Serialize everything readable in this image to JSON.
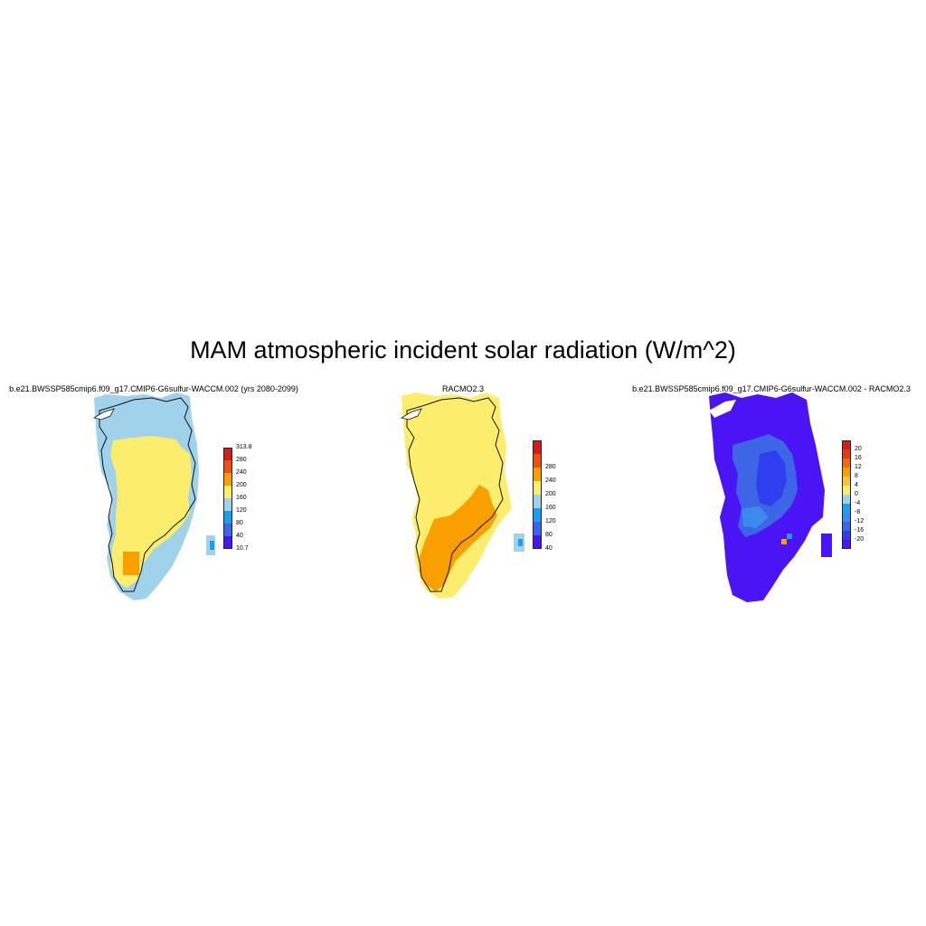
{
  "figure": {
    "title": "MAM atmospheric incident solar radiation (W/m^2)"
  },
  "colors": {
    "c_purple": "#4a14f5",
    "c_blue": "#3c66e6",
    "c_sky": "#1a9ef0",
    "c_lightblue": "#a0d2ec",
    "c_yellow": "#fcee6c",
    "c_orange": "#f9a000",
    "c_redorange": "#ee4f12",
    "c_red": "#d11d1d",
    "c_darkred": "#b81b1b",
    "coast": "#111111",
    "background": "#ffffff"
  },
  "panels": [
    {
      "title": "b.e21.BWSSP585cmip6.f09_g17.CMIP6-G6sulfur-WACCM.002 (yrs 2080-2099)",
      "colorbar": {
        "colors": [
          "#4a14f5",
          "#3c66e6",
          "#1a9ef0",
          "#a0d2ec",
          "#fcee6c",
          "#f9a000",
          "#ee4f12",
          "#d11d1d"
        ],
        "labels": [
          "313.8",
          "280",
          "240",
          "200",
          "160",
          "120",
          "80",
          "40",
          "10.7"
        ]
      },
      "field_summary": "mostly 160-200 interior with 120-160 margins, small 200-240 patch in south"
    },
    {
      "title": "RACMO2.3",
      "colorbar": {
        "colors": [
          "#4a14f5",
          "#3c66e6",
          "#1a9ef0",
          "#a0d2ec",
          "#fcee6c",
          "#f9a000",
          "#ee4f12",
          "#d11d1d"
        ],
        "labels": [
          "280",
          "240",
          "200",
          "160",
          "120",
          "80",
          "40"
        ]
      },
      "field_summary": "160-200 north and center, 200-240 in south"
    },
    {
      "title": "b.e21.BWSSP585cmip6.f09_g17.CMIP6-G6sulfur-WACCM.002 - RACMO2.3",
      "colorbar": {
        "colors": [
          "#4a14f5",
          "#2f3fef",
          "#3c66e6",
          "#3b8af0",
          "#1a9ef0",
          "#a0d2ec",
          "#fcee6c",
          "#f6c53a",
          "#f9a000",
          "#ee6a12",
          "#e33b12",
          "#d11d1d"
        ],
        "labels": [
          "20",
          "16",
          "12",
          "8",
          "4",
          "0",
          "-4",
          "-8",
          "-12",
          "-16",
          "-20"
        ]
      },
      "field_summary": "mostly below -20 with -16 to -8 bands in the interior"
    }
  ]
}
